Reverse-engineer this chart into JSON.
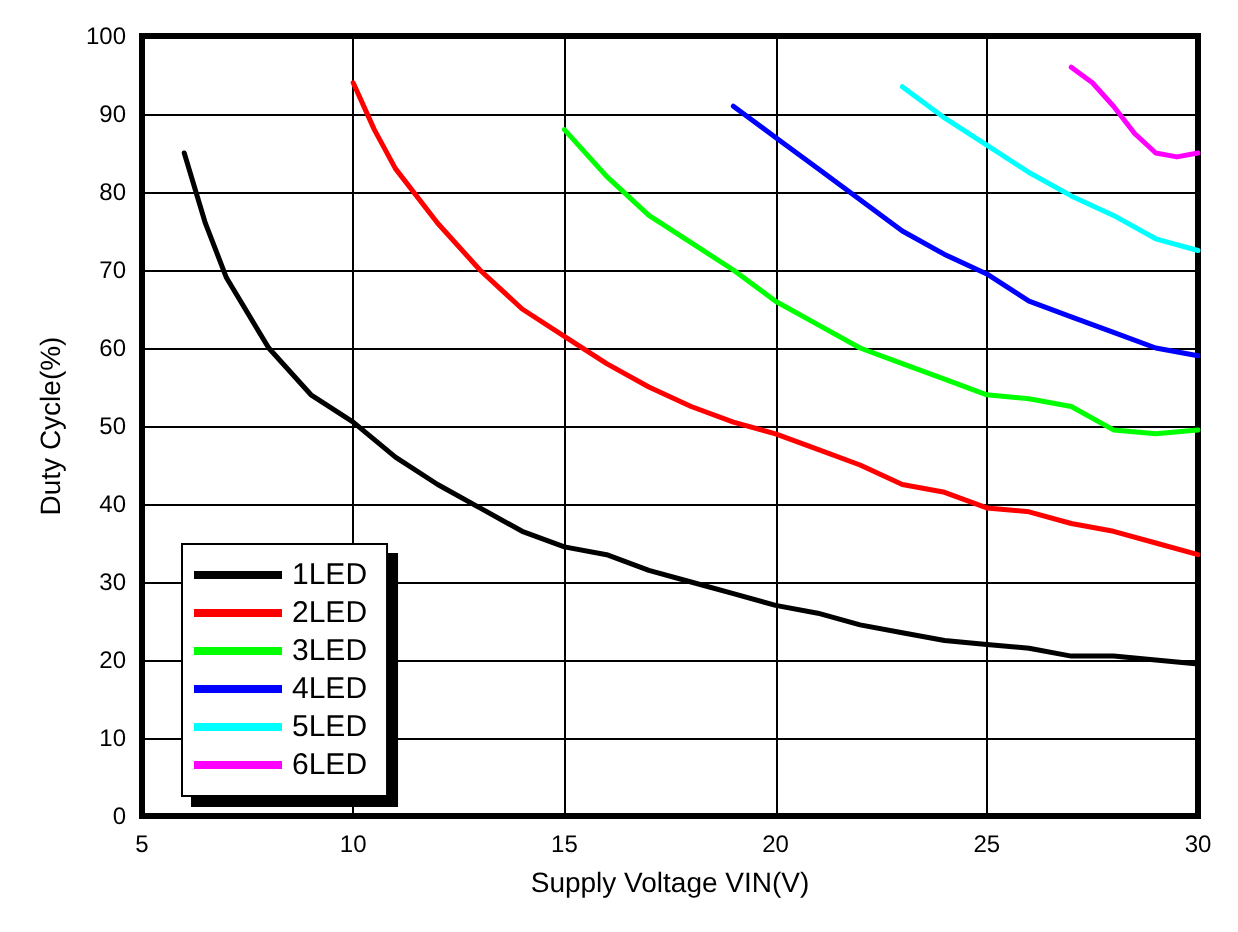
{
  "chart_data": {
    "type": "line",
    "xlabel": "Supply Voltage VIN(V)",
    "ylabel": "Duty Cycle(%)",
    "xlim": [
      5,
      30
    ],
    "xticks": [
      5,
      10,
      15,
      20,
      25,
      30
    ],
    "ylim": [
      0,
      100
    ],
    "yticks": [
      0,
      10,
      20,
      30,
      40,
      50,
      60,
      70,
      80,
      90,
      100
    ],
    "grid": true,
    "legend": "bottom left",
    "marker": "none",
    "line_style": "solid",
    "series": [
      {
        "name": "1LED",
        "color": "#000000",
        "x": [
          6,
          6.5,
          7,
          8,
          9,
          10,
          11,
          12,
          13,
          14,
          15,
          16,
          17,
          18,
          19,
          20,
          21,
          22,
          23,
          24,
          25,
          26,
          27,
          28,
          29,
          30
        ],
        "values": [
          85,
          76,
          69,
          60,
          54,
          50.5,
          46,
          42.5,
          39.5,
          36.5,
          34.5,
          33.5,
          31.5,
          30,
          28.5,
          27,
          26,
          24.5,
          23.5,
          22.5,
          22,
          21.5,
          20.5,
          20.5,
          20,
          19.5
        ]
      },
      {
        "name": "2LED",
        "color": "#ff0000",
        "x": [
          10,
          10.5,
          11,
          12,
          13,
          14,
          15,
          16,
          17,
          18,
          19,
          20,
          21,
          22,
          23,
          24,
          25,
          26,
          27,
          28,
          29,
          30
        ],
        "values": [
          94,
          88,
          83,
          76,
          70,
          65,
          61.5,
          58,
          55,
          52.5,
          50.5,
          49,
          47,
          45,
          42.5,
          41.5,
          39.5,
          39,
          37.5,
          36.5,
          35,
          33.5
        ]
      },
      {
        "name": "3LED",
        "color": "#00ff00",
        "x": [
          15,
          16,
          17,
          18,
          19,
          20,
          21,
          22,
          23,
          24,
          25,
          26,
          27,
          28,
          29,
          30
        ],
        "values": [
          88,
          82,
          77,
          73.5,
          70,
          66,
          63,
          60,
          58,
          56,
          54,
          53.5,
          52.5,
          49.5,
          49,
          49.5
        ]
      },
      {
        "name": "4LED",
        "color": "#0000ff",
        "x": [
          19,
          20,
          21,
          22,
          23,
          24,
          25,
          26,
          27,
          28,
          29,
          30
        ],
        "values": [
          91,
          87,
          83,
          79,
          75,
          72,
          69.5,
          66,
          64,
          62,
          60,
          59
        ]
      },
      {
        "name": "5LED",
        "color": "#00ffff",
        "x": [
          23,
          24,
          25,
          26,
          27,
          28,
          29,
          30
        ],
        "values": [
          93.5,
          89.5,
          86,
          82.5,
          79.5,
          77,
          74,
          72.5
        ]
      },
      {
        "name": "6LED",
        "color": "#ff00ff",
        "x": [
          27,
          27.5,
          28,
          28.5,
          29,
          29.5,
          30
        ],
        "values": [
          96,
          94,
          91,
          87.5,
          85,
          84.5,
          85
        ]
      }
    ]
  }
}
